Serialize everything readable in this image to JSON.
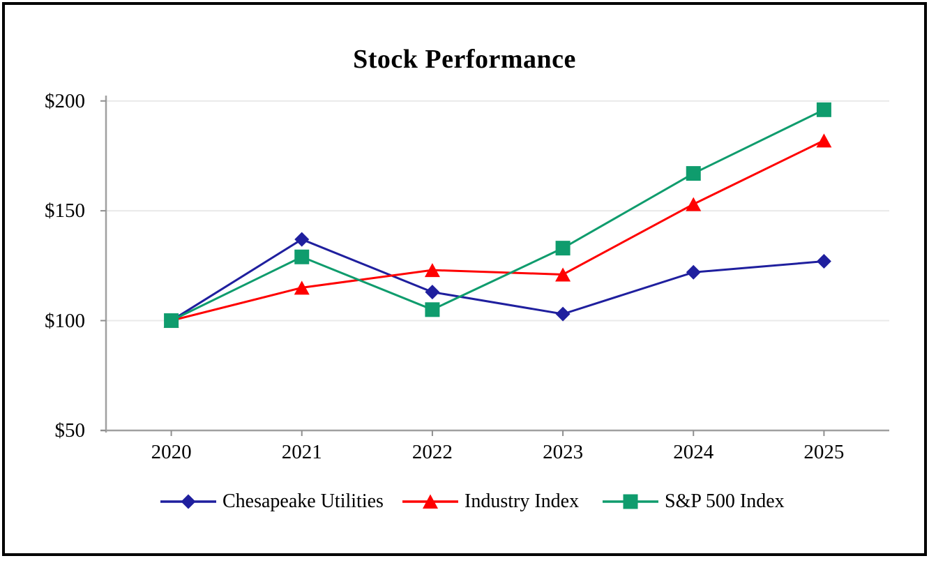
{
  "chart_data": {
    "type": "line",
    "title": "Stock Performance",
    "categories": [
      "2020",
      "2021",
      "2022",
      "2023",
      "2024",
      "2025"
    ],
    "y_tick_labels": [
      "$200",
      "$150",
      "$100",
      "$50"
    ],
    "ylim": [
      50,
      200
    ],
    "grid": "horizontal gridlines at $100, $150, $200",
    "legend_position": "bottom-center",
    "series": [
      {
        "name": "Chesapeake Utilities",
        "marker": "diamond",
        "color": "#1F1F9E",
        "values": [
          100,
          137,
          113,
          103,
          122,
          127
        ]
      },
      {
        "name": "Industry Index",
        "marker": "triangle",
        "color": "#FE0000",
        "values": [
          100,
          115,
          123,
          121,
          153,
          182
        ]
      },
      {
        "name": "S&P 500 Index",
        "marker": "square",
        "color": "#0F9C6D",
        "values": [
          100,
          129,
          105,
          133,
          167,
          196
        ]
      }
    ]
  },
  "colors": {
    "grid": "#E9E9E9",
    "axis": "#A0A0A0",
    "tick": "#8F8F8F",
    "text": "#000000",
    "frame": "#000000",
    "background": "#FFFFFF"
  }
}
